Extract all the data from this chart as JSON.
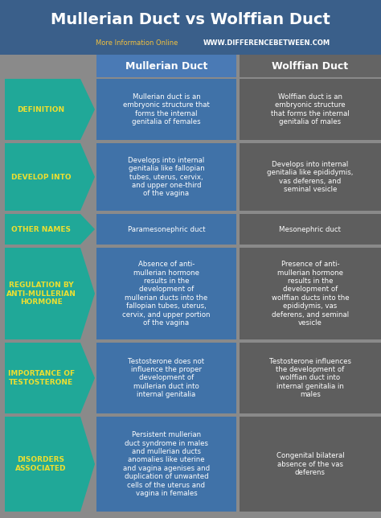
{
  "title": "Mullerian Duct vs Wolffian Duct",
  "subtitle_plain": "More Information Online",
  "subtitle_url": "WWW.DIFFERENCEBETWEEN.COM",
  "col_header_left": "Mullerian Duct",
  "col_header_right": "Wolffian Duct",
  "bg_color": "#8a8a8a",
  "header_bg": "#3a5f8a",
  "title_color": "#ffffff",
  "subtitle_plain_color": "#f0c040",
  "subtitle_url_color": "#ffffff",
  "col_header_bg": "#4a7ab5",
  "col_header_right_bg": "#646464",
  "arrow_color": "#20a898",
  "arrow_label_color": "#eedf30",
  "mullerian_cell_bg": "#4072a8",
  "wolffian_cell_bg": "#5e5e5e",
  "cell_text_color": "#ffffff",
  "rows": [
    {
      "label": "DEFINITION",
      "mullerian": "Mullerian duct is an\nembryonic structure that\nforms the internal\ngenitalia of females",
      "wolffian": "Wolffian duct is an\nembryonic structure\nthat forms the internal\ngenitalia of males"
    },
    {
      "label": "DEVELOP INTO",
      "mullerian": "Develops into internal\ngenitalia like fallopian\ntubes, uterus, cervix,\nand upper one-third\nof the vagina",
      "wolffian": "Develops into internal\ngenitalia like epididymis,\nvas deferens, and\nseminal vesicle"
    },
    {
      "label": "OTHER NAMES",
      "mullerian": "Paramesonephric duct",
      "wolffian": "Mesonephric duct"
    },
    {
      "label": "REGULATION BY\nANTI-MULLERIAN\nHORMONE",
      "mullerian": "Absence of anti-\nmullerian hormone\nresults in the\ndevelopment of\nmullerian ducts into the\nfallopian tubes, uterus,\ncervix, and upper portion\nof the vagina",
      "wolffian": "Presence of anti-\nmullerian hormone\nresults in the\ndevelopment of\nwolffian ducts into the\nepididymis, vas\ndeferens, and seminal\nvesicle"
    },
    {
      "label": "IMPORTANCE OF\nTESTOSTERONE",
      "mullerian": "Testosterone does not\ninfluence the proper\ndevelopment of\nmullerian duct into\ninternal genitalia",
      "wolffian": "Testosterone influences\nthe development of\nwolffian duct into\ninternal genitalia in\nmales"
    },
    {
      "label": "DISORDERS\nASSOCIATED",
      "mullerian": "Persistent mullerian\nduct syndrome in males\nand mullerian ducts\nanomalies like uterine\nand vagina agenises and\nduplication of unwanted\ncells of the uterus and\nvagina in females",
      "wolffian": "Congenital bilateral\nabsence of the vas\ndeferens"
    }
  ]
}
